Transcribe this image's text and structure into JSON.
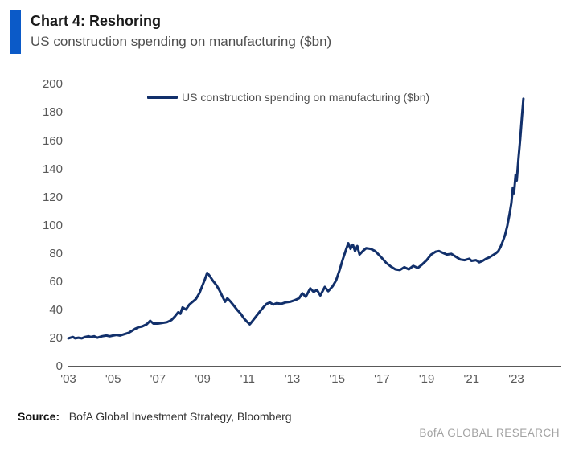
{
  "header": {
    "title": "Chart 4: Reshoring",
    "subtitle": "US construction spending on manufacturing ($bn)"
  },
  "legend": {
    "label": "US construction spending on manufacturing ($bn)"
  },
  "footer": {
    "source_label": "Source:",
    "source_text": "BofA Global Investment Strategy, Bloomberg",
    "brand": "BofA GLOBAL RESEARCH"
  },
  "colors": {
    "accent_bar": "#0b5ac8",
    "line": "#12306b",
    "axis": "#595959",
    "tick_text": "#595959"
  },
  "chart_data": {
    "type": "line",
    "title": "Chart 4: Reshoring",
    "subtitle": "US construction spending on manufacturing ($bn)",
    "xlabel": "",
    "ylabel": "",
    "ylim": [
      0,
      200
    ],
    "xlim": [
      2002.9,
      2023.8
    ],
    "grid": false,
    "legend_position": "top-center",
    "y_ticks": [
      0,
      20,
      40,
      60,
      80,
      100,
      120,
      140,
      160,
      180,
      200
    ],
    "x_ticks": {
      "labels": [
        "'03",
        "'05",
        "'07",
        "'09",
        "'11",
        "'13",
        "'15",
        "'17",
        "'19",
        "'21",
        "'23"
      ],
      "years": [
        2003,
        2005,
        2007,
        2009,
        2011,
        2013,
        2015,
        2017,
        2019,
        2021,
        2023
      ]
    },
    "series": [
      {
        "name": "US construction spending on manufacturing ($bn)",
        "points": [
          [
            2003.0,
            20
          ],
          [
            2003.1,
            20.5
          ],
          [
            2003.2,
            21
          ],
          [
            2003.3,
            20
          ],
          [
            2003.45,
            20.5
          ],
          [
            2003.6,
            20
          ],
          [
            2003.75,
            21
          ],
          [
            2003.9,
            21.5
          ],
          [
            2004.0,
            21
          ],
          [
            2004.15,
            21.5
          ],
          [
            2004.3,
            20.5
          ],
          [
            2004.5,
            21.5
          ],
          [
            2004.7,
            22
          ],
          [
            2004.85,
            21.5
          ],
          [
            2005.0,
            22
          ],
          [
            2005.15,
            22.5
          ],
          [
            2005.3,
            22
          ],
          [
            2005.5,
            23
          ],
          [
            2005.7,
            24
          ],
          [
            2005.85,
            25.5
          ],
          [
            2006.0,
            27
          ],
          [
            2006.15,
            28
          ],
          [
            2006.3,
            28.5
          ],
          [
            2006.5,
            30
          ],
          [
            2006.65,
            32.5
          ],
          [
            2006.8,
            30.5
          ],
          [
            2007.0,
            30.5
          ],
          [
            2007.2,
            31
          ],
          [
            2007.4,
            31.5
          ],
          [
            2007.6,
            33
          ],
          [
            2007.75,
            35.5
          ],
          [
            2007.9,
            38.5
          ],
          [
            2008.0,
            37.5
          ],
          [
            2008.1,
            42
          ],
          [
            2008.25,
            40.5
          ],
          [
            2008.4,
            44
          ],
          [
            2008.55,
            46
          ],
          [
            2008.7,
            48
          ],
          [
            2008.85,
            52
          ],
          [
            2009.0,
            58
          ],
          [
            2009.1,
            62
          ],
          [
            2009.2,
            66.5
          ],
          [
            2009.3,
            64.5
          ],
          [
            2009.45,
            61
          ],
          [
            2009.6,
            58
          ],
          [
            2009.75,
            54
          ],
          [
            2009.9,
            49
          ],
          [
            2010.0,
            46
          ],
          [
            2010.1,
            48.5
          ],
          [
            2010.25,
            46
          ],
          [
            2010.4,
            43
          ],
          [
            2010.55,
            40
          ],
          [
            2010.7,
            37.5
          ],
          [
            2010.85,
            34
          ],
          [
            2011.0,
            31.5
          ],
          [
            2011.1,
            30
          ],
          [
            2011.25,
            33
          ],
          [
            2011.4,
            36
          ],
          [
            2011.55,
            39
          ],
          [
            2011.7,
            42
          ],
          [
            2011.85,
            44.5
          ],
          [
            2012.0,
            45.5
          ],
          [
            2012.15,
            44
          ],
          [
            2012.3,
            45
          ],
          [
            2012.5,
            44.5
          ],
          [
            2012.7,
            45.5
          ],
          [
            2012.9,
            46
          ],
          [
            2013.1,
            47
          ],
          [
            2013.3,
            48.5
          ],
          [
            2013.45,
            52
          ],
          [
            2013.6,
            49.5
          ],
          [
            2013.8,
            55.5
          ],
          [
            2013.95,
            53
          ],
          [
            2014.1,
            54.5
          ],
          [
            2014.25,
            50.5
          ],
          [
            2014.45,
            56.5
          ],
          [
            2014.6,
            53.5
          ],
          [
            2014.8,
            57
          ],
          [
            2014.95,
            61
          ],
          [
            2015.1,
            68
          ],
          [
            2015.25,
            76
          ],
          [
            2015.4,
            83
          ],
          [
            2015.5,
            87.5
          ],
          [
            2015.6,
            83.5
          ],
          [
            2015.7,
            86.5
          ],
          [
            2015.8,
            82
          ],
          [
            2015.9,
            85.5
          ],
          [
            2016.0,
            79.5
          ],
          [
            2016.15,
            82
          ],
          [
            2016.3,
            84
          ],
          [
            2016.5,
            83.5
          ],
          [
            2016.7,
            82
          ],
          [
            2016.85,
            79.5
          ],
          [
            2017.0,
            77
          ],
          [
            2017.2,
            73.5
          ],
          [
            2017.4,
            71
          ],
          [
            2017.6,
            69
          ],
          [
            2017.8,
            68.5
          ],
          [
            2018.0,
            70.5
          ],
          [
            2018.2,
            69
          ],
          [
            2018.4,
            71.5
          ],
          [
            2018.6,
            70
          ],
          [
            2018.8,
            72.5
          ],
          [
            2019.0,
            75.5
          ],
          [
            2019.2,
            79.5
          ],
          [
            2019.4,
            81.5
          ],
          [
            2019.55,
            82
          ],
          [
            2019.75,
            80.5
          ],
          [
            2019.9,
            79.5
          ],
          [
            2020.1,
            80
          ],
          [
            2020.3,
            78
          ],
          [
            2020.5,
            76
          ],
          [
            2020.7,
            75.5
          ],
          [
            2020.9,
            76.5
          ],
          [
            2021.0,
            75
          ],
          [
            2021.2,
            75.5
          ],
          [
            2021.35,
            74
          ],
          [
            2021.5,
            75
          ],
          [
            2021.65,
            76.5
          ],
          [
            2021.8,
            77.5
          ],
          [
            2021.95,
            79
          ],
          [
            2022.1,
            80.5
          ],
          [
            2022.2,
            82
          ],
          [
            2022.3,
            85
          ],
          [
            2022.4,
            89
          ],
          [
            2022.5,
            93.5
          ],
          [
            2022.6,
            100
          ],
          [
            2022.7,
            108
          ],
          [
            2022.78,
            116
          ],
          [
            2022.85,
            127
          ],
          [
            2022.9,
            123
          ],
          [
            2022.97,
            136
          ],
          [
            2023.02,
            132
          ],
          [
            2023.1,
            148
          ],
          [
            2023.18,
            162
          ],
          [
            2023.25,
            177
          ],
          [
            2023.32,
            190
          ]
        ]
      }
    ]
  }
}
